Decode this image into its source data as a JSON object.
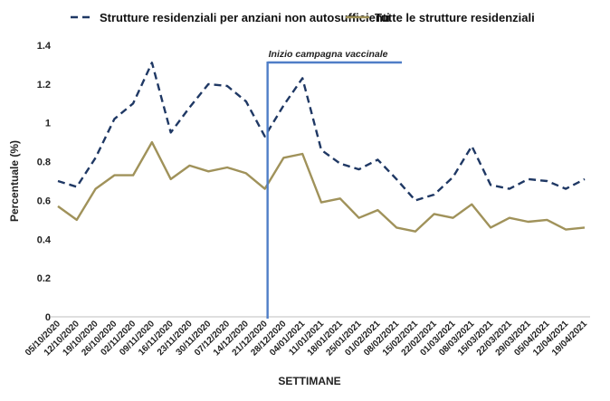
{
  "chart_data": {
    "type": "line",
    "title": "",
    "xlabel": "SETTIMANE",
    "ylabel": "Percentuale (%)",
    "ylim": [
      0,
      1.4
    ],
    "yticks": [
      "0",
      "0.2",
      "0.4",
      "0.6",
      "0.8",
      "1",
      "1.2",
      "1.4"
    ],
    "grid": false,
    "legend_position": "top",
    "categories": [
      "05/10/2020",
      "12/10/2020",
      "19/10/2020",
      "26/10/2020",
      "02/11/2020",
      "09/11/2020",
      "16/11/2020",
      "23/11/2020",
      "30/11/2020",
      "07/12/2020",
      "14/12/2020",
      "21/12/2020",
      "28/12/2020",
      "04/01/2021",
      "11/01/2021",
      "18/01/2021",
      "25/01/2021",
      "01/02/2021",
      "08/02/2021",
      "15/02/2021",
      "22/02/2021",
      "01/03/2021",
      "08/03/2021",
      "15/03/2021",
      "22/03/2021",
      "29/03/2021",
      "05/04/2021",
      "12/04/2021",
      "19/04/2021"
    ],
    "series": [
      {
        "name": "Strutture residenziali per anziani non autosufficienti",
        "style": "dashed",
        "color": "#1f3864",
        "values": [
          0.7,
          0.67,
          0.82,
          1.02,
          1.1,
          1.31,
          0.95,
          1.08,
          1.2,
          1.19,
          1.11,
          0.93,
          1.09,
          1.23,
          0.86,
          0.79,
          0.76,
          0.81,
          0.71,
          0.6,
          0.63,
          0.72,
          0.88,
          0.68,
          0.66,
          0.71,
          0.7,
          0.66,
          0.71
        ]
      },
      {
        "name": "Tutte le strutture residenziali",
        "style": "solid",
        "color": "#a0925a",
        "values": [
          0.57,
          0.5,
          0.66,
          0.73,
          0.73,
          0.9,
          0.71,
          0.78,
          0.75,
          0.77,
          0.74,
          0.66,
          0.82,
          0.84,
          0.59,
          0.61,
          0.51,
          0.55,
          0.46,
          0.44,
          0.53,
          0.51,
          0.58,
          0.46,
          0.51,
          0.49,
          0.5,
          0.45,
          0.46
        ]
      }
    ],
    "annotation": {
      "text": "Inizio campagna vaccinale",
      "at_category": "21/12/2020",
      "color": "#4f7ec7"
    }
  }
}
